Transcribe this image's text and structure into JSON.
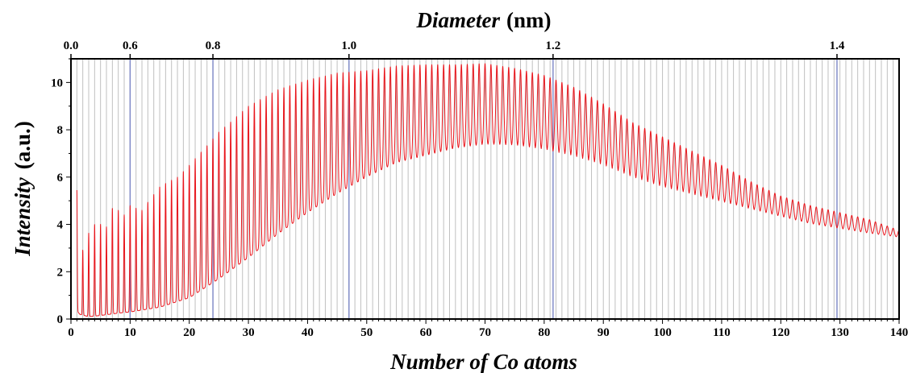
{
  "chart_data": {
    "type": "line",
    "title": "",
    "xlabel": "Number of Co atoms",
    "ylabel_main": "Intensity",
    "ylabel_unit": "(a.u.)",
    "top_label_main": "Diameter",
    "top_label_unit": "(nm)",
    "xlim": [
      0,
      140
    ],
    "ylim": [
      0,
      11
    ],
    "x_ticks": [
      0,
      10,
      20,
      30,
      40,
      50,
      60,
      70,
      80,
      90,
      100,
      110,
      120,
      130,
      140
    ],
    "y_ticks": [
      0,
      2,
      4,
      6,
      8,
      10
    ],
    "top_ticks": [
      {
        "label": "0.0",
        "atoms": 0
      },
      {
        "label": "0.6",
        "atoms": 10
      },
      {
        "label": "0.8",
        "atoms": 24
      },
      {
        "label": "1.0",
        "atoms": 47
      },
      {
        "label": "1.2",
        "atoms": 81.5
      },
      {
        "label": "1.4",
        "atoms": 129.5
      }
    ],
    "grid": "vertical line at every integer atom number",
    "highlight_line_color": "#7b86c6",
    "grid_color": "#c0c0c0",
    "series": [
      {
        "color": "#e8141b",
        "peak_envelope": {
          "x": [
            1.5,
            2,
            3,
            4,
            5,
            6,
            7,
            8,
            9,
            10,
            12,
            15,
            18,
            20,
            25,
            30,
            35,
            40,
            45,
            50,
            55,
            60,
            65,
            70,
            75,
            80,
            85,
            90,
            95,
            100,
            105,
            110,
            115,
            120,
            125,
            130,
            135,
            140
          ],
          "y": [
            5.45,
            2.9,
            3.65,
            4.0,
            4.0,
            3.9,
            4.7,
            4.6,
            4.4,
            4.8,
            4.6,
            5.6,
            6.0,
            6.5,
            7.9,
            9.0,
            9.7,
            10.1,
            10.4,
            10.5,
            10.7,
            10.75,
            10.75,
            10.8,
            10.6,
            10.3,
            9.8,
            9.1,
            8.3,
            7.7,
            7.1,
            6.5,
            5.8,
            5.2,
            4.8,
            4.5,
            4.2,
            3.75
          ]
        },
        "trough_envelope": {
          "x": [
            1,
            1.5,
            3,
            5,
            8,
            10,
            15,
            20,
            25,
            30,
            35,
            40,
            45,
            50,
            55,
            60,
            65,
            70,
            75,
            80,
            85,
            90,
            95,
            100,
            105,
            110,
            115,
            120,
            125,
            130,
            135,
            140
          ],
          "y": [
            0.35,
            0.2,
            0.1,
            0.15,
            0.25,
            0.3,
            0.5,
            0.9,
            1.7,
            2.6,
            3.6,
            4.5,
            5.3,
            6.0,
            6.6,
            6.9,
            7.2,
            7.35,
            7.3,
            7.1,
            6.8,
            6.4,
            5.9,
            5.5,
            5.2,
            4.9,
            4.6,
            4.3,
            4.0,
            3.8,
            3.6,
            3.45
          ]
        }
      }
    ]
  }
}
